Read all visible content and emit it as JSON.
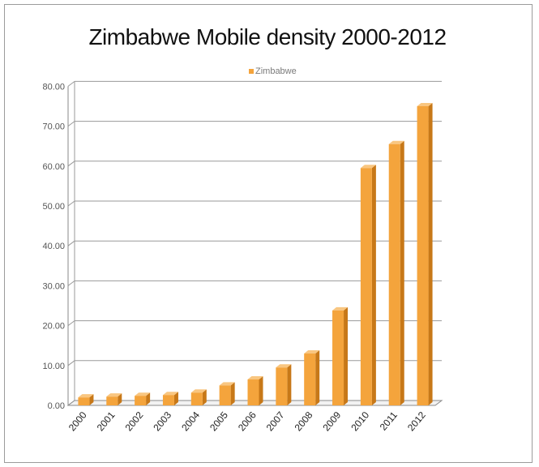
{
  "chart_data": {
    "type": "bar",
    "title": "Zimbabwe Mobile density 2000-2012",
    "xlabel": "",
    "ylabel": "",
    "categories": [
      "2000",
      "2001",
      "2002",
      "2003",
      "2004",
      "2005",
      "2006",
      "2007",
      "2008",
      "2009",
      "2010",
      "2011",
      "2012"
    ],
    "series": [
      {
        "name": "Zimbabwe",
        "values": [
          2.0,
          2.2,
          2.4,
          2.6,
          3.2,
          5.0,
          6.5,
          9.5,
          13.0,
          23.8,
          59.5,
          65.5,
          75.0
        ],
        "color": "#f4a43c"
      }
    ],
    "ylim": [
      0,
      80
    ],
    "yticks": [
      "0.00",
      "10.00",
      "20.00",
      "30.00",
      "40.00",
      "50.00",
      "60.00",
      "70.00",
      "80.00"
    ],
    "grid": true,
    "legend_position": "top-center",
    "style": "3d-columns"
  }
}
